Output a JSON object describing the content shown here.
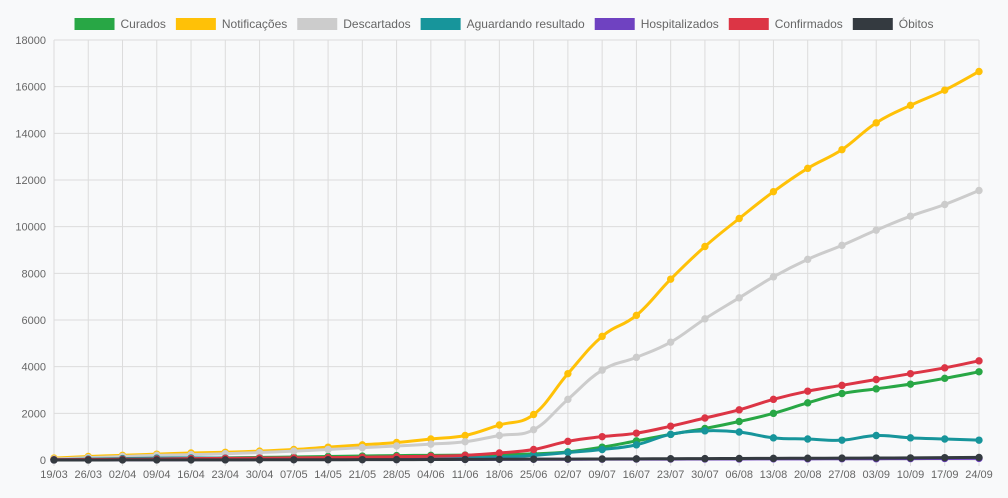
{
  "chart_data": {
    "type": "line",
    "title": "",
    "xlabel": "",
    "ylabel": "",
    "ylim": [
      0,
      18000
    ],
    "yticks": [
      0,
      2000,
      4000,
      6000,
      8000,
      10000,
      12000,
      14000,
      16000,
      18000
    ],
    "grid": true,
    "legend_position": "top",
    "categories": [
      "19/03",
      "26/03",
      "02/04",
      "09/04",
      "16/04",
      "23/04",
      "30/04",
      "07/05",
      "14/05",
      "21/05",
      "28/05",
      "04/06",
      "11/06",
      "18/06",
      "25/06",
      "02/07",
      "09/07",
      "16/07",
      "23/07",
      "30/07",
      "06/08",
      "13/08",
      "20/08",
      "27/08",
      "03/09",
      "10/09",
      "17/09",
      "24/09"
    ],
    "series": [
      {
        "name": "Curados",
        "color": "#28a745",
        "values": [
          10,
          20,
          30,
          50,
          70,
          90,
          110,
          130,
          150,
          170,
          190,
          200,
          210,
          230,
          260,
          350,
          550,
          820,
          1100,
          1350,
          1650,
          2000,
          2450,
          2850,
          3050,
          3250,
          3500,
          3780
        ]
      },
      {
        "name": "Notificações",
        "color": "#ffc107",
        "values": [
          80,
          150,
          200,
          250,
          300,
          330,
          380,
          450,
          550,
          650,
          750,
          900,
          1050,
          1500,
          1950,
          3700,
          5300,
          6200,
          7750,
          9150,
          10350,
          11500,
          12500,
          13300,
          14450,
          15200,
          15850,
          16650
        ]
      },
      {
        "name": "Descartados",
        "color": "#cccccc",
        "values": [
          40,
          100,
          150,
          200,
          230,
          270,
          320,
          380,
          450,
          530,
          600,
          680,
          780,
          1050,
          1300,
          2600,
          3850,
          4400,
          5050,
          6050,
          6950,
          7850,
          8600,
          9200,
          9850,
          10450,
          10950,
          11550
        ]
      },
      {
        "name": "Aguardando resultado",
        "color": "#17959b",
        "values": [
          10,
          40,
          60,
          80,
          90,
          80,
          80,
          80,
          80,
          80,
          80,
          90,
          100,
          120,
          200,
          320,
          450,
          650,
          1100,
          1250,
          1200,
          950,
          900,
          850,
          1050,
          950,
          900,
          850
        ]
      },
      {
        "name": "Hospitalizados",
        "color": "#6f42c1",
        "values": [
          5,
          10,
          10,
          10,
          15,
          15,
          20,
          20,
          20,
          20,
          20,
          25,
          25,
          30,
          30,
          30,
          35,
          40,
          40,
          45,
          45,
          50,
          50,
          55,
          55,
          60,
          65,
          70
        ]
      },
      {
        "name": "Confirmados",
        "color": "#dc3545",
        "values": [
          10,
          20,
          30,
          40,
          60,
          70,
          80,
          90,
          100,
          120,
          140,
          160,
          200,
          300,
          450,
          800,
          1000,
          1150,
          1450,
          1800,
          2150,
          2600,
          2950,
          3200,
          3450,
          3700,
          3950,
          4250
        ]
      },
      {
        "name": "Óbitos",
        "color": "#343a40",
        "values": [
          1,
          2,
          3,
          4,
          5,
          6,
          8,
          10,
          12,
          15,
          18,
          20,
          25,
          30,
          35,
          40,
          45,
          50,
          55,
          60,
          65,
          70,
          75,
          80,
          85,
          90,
          100,
          110
        ]
      }
    ]
  }
}
